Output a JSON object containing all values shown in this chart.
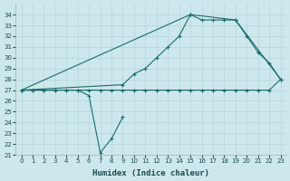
{
  "xlabel": "Humidex (Indice chaleur)",
  "ylabel": "",
  "bg_color": "#cde8ec",
  "grid_color": "#b8d8dc",
  "line_color": "#1a6b6b",
  "xlim": [
    -0.5,
    23.5
  ],
  "ylim": [
    21,
    35
  ],
  "xticks": [
    0,
    1,
    2,
    3,
    4,
    5,
    6,
    7,
    8,
    9,
    10,
    11,
    12,
    13,
    14,
    15,
    16,
    17,
    18,
    19,
    20,
    21,
    22,
    23
  ],
  "yticks": [
    21,
    22,
    23,
    24,
    25,
    26,
    27,
    28,
    29,
    30,
    31,
    32,
    33,
    34
  ],
  "series": [
    {
      "x": [
        0,
        1,
        2,
        3,
        4,
        5,
        6,
        7,
        8,
        9,
        10,
        11,
        12,
        13,
        14,
        15,
        16,
        17,
        18,
        19,
        20,
        21,
        22,
        23
      ],
      "y": [
        27,
        27,
        27,
        27,
        27,
        27,
        27,
        27,
        27,
        27,
        27,
        27,
        27,
        27,
        27,
        27,
        27,
        27,
        27,
        27,
        27,
        27,
        27,
        28
      ]
    },
    {
      "x": [
        0,
        1,
        2,
        3,
        4,
        5,
        6,
        7,
        8,
        9
      ],
      "y": [
        27,
        27,
        27,
        27,
        27,
        27,
        26.5,
        21.2,
        22.5,
        24.5
      ]
    },
    {
      "x": [
        0,
        15,
        19,
        23
      ],
      "y": [
        27,
        34,
        33.5,
        28
      ]
    },
    {
      "x": [
        0,
        9,
        10,
        11,
        12,
        13,
        14,
        15,
        16,
        17,
        18,
        19,
        20,
        21,
        22,
        23
      ],
      "y": [
        27,
        27.5,
        28.5,
        29,
        30,
        31,
        32,
        34,
        33.5,
        33.5,
        33.5,
        33.5,
        32,
        30.5,
        29.5,
        28
      ]
    }
  ]
}
